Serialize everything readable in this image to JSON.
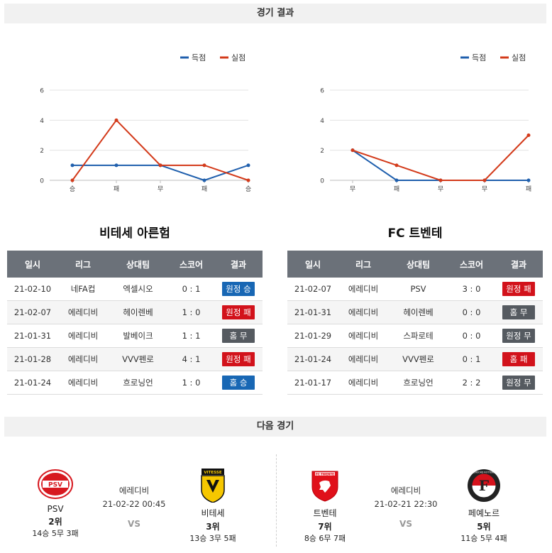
{
  "sections": {
    "results": "경기 결과",
    "next": "다음 경기"
  },
  "legend": {
    "scored": "득점",
    "conceded": "실점"
  },
  "colors": {
    "scored": "#1f5fad",
    "conceded": "#d33a1a",
    "win": "#1867b4",
    "loss": "#d2121b",
    "draw": "#555a60"
  },
  "chart_data": [
    {
      "type": "line",
      "categories": [
        "승",
        "패",
        "무",
        "패",
        "승"
      ],
      "series": [
        {
          "name": "득점",
          "values": [
            1,
            1,
            1,
            0,
            1
          ]
        },
        {
          "name": "실점",
          "values": [
            0,
            4,
            1,
            1,
            0
          ]
        }
      ],
      "yticks": [
        "0",
        "2",
        "4",
        "6"
      ],
      "ylim": [
        0,
        6
      ],
      "grid": true,
      "legend": "top-right"
    },
    {
      "type": "line",
      "categories": [
        "무",
        "패",
        "무",
        "무",
        "패"
      ],
      "series": [
        {
          "name": "득점",
          "values": [
            2,
            0,
            0,
            0,
            0
          ]
        },
        {
          "name": "실점",
          "values": [
            2,
            1,
            0,
            0,
            3
          ]
        }
      ],
      "yticks": [
        "0",
        "2",
        "4",
        "6"
      ],
      "ylim": [
        0,
        6
      ],
      "grid": true,
      "legend": "top-right"
    }
  ],
  "headers": [
    "일시",
    "리그",
    "상대팀",
    "스코어",
    "결과"
  ],
  "teams": [
    {
      "name": "비테세 아른험",
      "rows": [
        {
          "date": "21-02-10",
          "league": "네FA컵",
          "opponent": "엑셀시오",
          "score": "0 : 1",
          "result": "원정 승",
          "type": "win"
        },
        {
          "date": "21-02-07",
          "league": "에레디비",
          "opponent": "헤이렌베",
          "score": "1 : 0",
          "result": "원정 패",
          "type": "loss"
        },
        {
          "date": "21-01-31",
          "league": "에레디비",
          "opponent": "발베이크",
          "score": "1 : 1",
          "result": "홈 무",
          "type": "draw"
        },
        {
          "date": "21-01-28",
          "league": "에레디비",
          "opponent": "VVV펜로",
          "score": "4 : 1",
          "result": "원정 패",
          "type": "loss"
        },
        {
          "date": "21-01-24",
          "league": "에레디비",
          "opponent": "흐로닝언",
          "score": "1 : 0",
          "result": "홈 승",
          "type": "win"
        }
      ]
    },
    {
      "name": "FC 트벤테",
      "rows": [
        {
          "date": "21-02-07",
          "league": "에레디비",
          "opponent": "PSV",
          "score": "3 : 0",
          "result": "원정 패",
          "type": "loss"
        },
        {
          "date": "21-01-31",
          "league": "에레디비",
          "opponent": "헤이렌베",
          "score": "0 : 0",
          "result": "홈 무",
          "type": "draw"
        },
        {
          "date": "21-01-29",
          "league": "에레디비",
          "opponent": "스파로테",
          "score": "0 : 0",
          "result": "원정 무",
          "type": "draw"
        },
        {
          "date": "21-01-24",
          "league": "에레디비",
          "opponent": "VVV펜로",
          "score": "0 : 1",
          "result": "홈 패",
          "type": "loss"
        },
        {
          "date": "21-01-17",
          "league": "에레디비",
          "opponent": "흐로닝언",
          "score": "2 : 2",
          "result": "원정 무",
          "type": "draw"
        }
      ]
    }
  ],
  "next": [
    {
      "league": "에레디비",
      "datetime": "21-02-22 00:45",
      "vs": "VS",
      "home": {
        "name": "PSV",
        "rank": "2위",
        "record": "14승 5무 3패",
        "logo": "PSV",
        "logo_icon": "psv-logo-icon"
      },
      "away": {
        "name": "비테세",
        "rank": "3위",
        "record": "13승 3무 5패",
        "logo": "VITESSE",
        "logo_icon": "vitesse-logo-icon"
      }
    },
    {
      "league": "에레디비",
      "datetime": "21-02-21 22:30",
      "vs": "VS",
      "home": {
        "name": "트벤테",
        "rank": "7위",
        "record": "8승 6무 7패",
        "logo": "FC TWENTE",
        "logo_icon": "twente-logo-icon"
      },
      "away": {
        "name": "페예노르",
        "rank": "5위",
        "record": "11승 5무 4패",
        "logo": "FEYENOORD ROTTERDAM",
        "logo_icon": "feyenoord-logo-icon"
      }
    }
  ]
}
